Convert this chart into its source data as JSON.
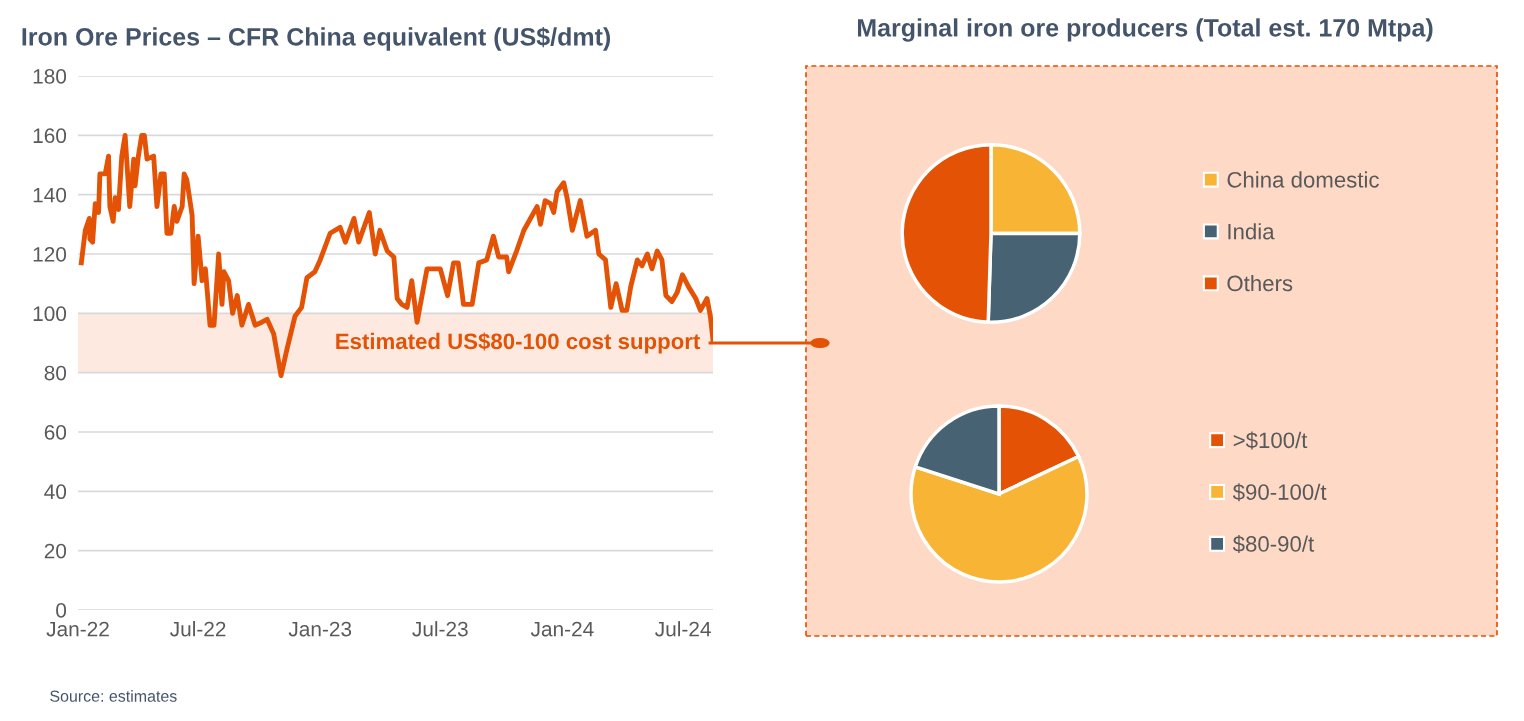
{
  "chart_data": [
    {
      "type": "line",
      "title": "Iron Ore Prices – CFR China equivalent (US$/dmt)",
      "x": [
        "2022-01-06",
        "2022-01-12",
        "2022-01-18",
        "2022-01-19",
        "2022-01-23",
        "2022-01-27",
        "2022-02-01",
        "2022-02-03",
        "2022-02-11",
        "2022-02-16",
        "2022-02-18",
        "2022-02-23",
        "2022-02-26",
        "2022-03-03",
        "2022-03-08",
        "2022-03-13",
        "2022-03-20",
        "2022-03-26",
        "2022-03-28",
        "2022-04-02",
        "2022-04-07",
        "2022-04-11",
        "2022-04-15",
        "2022-04-25",
        "2022-04-30",
        "2022-05-06",
        "2022-05-11",
        "2022-05-15",
        "2022-05-21",
        "2022-05-26",
        "2022-05-30",
        "2022-06-07",
        "2022-06-10",
        "2022-06-14",
        "2022-06-22",
        "2022-06-25",
        "2022-07-01",
        "2022-07-07",
        "2022-07-12",
        "2022-07-19",
        "2022-07-25",
        "2022-08-01",
        "2022-08-06",
        "2022-08-09",
        "2022-08-16",
        "2022-08-22",
        "2022-08-29",
        "2022-09-05",
        "2022-09-15",
        "2022-09-25",
        "2022-10-05",
        "2022-10-13",
        "2022-10-23",
        "2022-11-03",
        "2022-11-12",
        "2022-11-24",
        "2022-12-04",
        "2022-12-12",
        "2022-12-24",
        "2023-01-01",
        "2023-01-16",
        "2023-01-31",
        "2023-02-08",
        "2023-02-21",
        "2023-02-28",
        "2023-03-16",
        "2023-03-25",
        "2023-04-01",
        "2023-04-12",
        "2023-04-22",
        "2023-04-27",
        "2023-05-04",
        "2023-05-12",
        "2023-05-19",
        "2023-05-27",
        "2023-06-11",
        "2023-07-01",
        "2023-07-12",
        "2023-07-21",
        "2023-07-28",
        "2023-08-05",
        "2023-08-18",
        "2023-08-28",
        "2023-09-09",
        "2023-09-19",
        "2023-09-27",
        "2023-10-09",
        "2023-10-12",
        "2023-10-24",
        "2023-11-04",
        "2023-11-24",
        "2023-11-29",
        "2023-12-06",
        "2023-12-14",
        "2023-12-19",
        "2023-12-24",
        "2024-01-03",
        "2024-01-08",
        "2024-01-16",
        "2024-01-28",
        "2024-02-07",
        "2024-02-20",
        "2024-02-25",
        "2024-03-06",
        "2024-03-14",
        "2024-03-22",
        "2024-03-31",
        "2024-04-07",
        "2024-04-13",
        "2024-04-23",
        "2024-04-30",
        "2024-05-08",
        "2024-05-15",
        "2024-05-23",
        "2024-05-30",
        "2024-06-05",
        "2024-06-14",
        "2024-06-22",
        "2024-06-30",
        "2024-07-09",
        "2024-07-20",
        "2024-07-27",
        "2024-08-06",
        "2024-08-11",
        "2024-08-15"
      ],
      "series": [
        {
          "color": "#e35205",
          "values": [
            117,
            128,
            132,
            125,
            124,
            137,
            134,
            147,
            147,
            153,
            136,
            131,
            139,
            135,
            153,
            160,
            136,
            152,
            143,
            153,
            160,
            160,
            152,
            153,
            136,
            147,
            147,
            127,
            127,
            136,
            131,
            136,
            147,
            145,
            133,
            110,
            126,
            111,
            115,
            96,
            96,
            120,
            103,
            114,
            111,
            100,
            106,
            96,
            103,
            96,
            97,
            98,
            93,
            79,
            88,
            99,
            102,
            112,
            114,
            118,
            127,
            129,
            124,
            132,
            124,
            134,
            120,
            128,
            121,
            119,
            105,
            103,
            102,
            111,
            97,
            115,
            115,
            106,
            117,
            117,
            103,
            103,
            117,
            118,
            126,
            119,
            119,
            114,
            121,
            128,
            136,
            130,
            138,
            137,
            134,
            141,
            144,
            139,
            128,
            138,
            126,
            128,
            120,
            118,
            102,
            110,
            101,
            101,
            109,
            118,
            116,
            120,
            115,
            121,
            118,
            106,
            104,
            107,
            113,
            109,
            105,
            101,
            105,
            99,
            91
          ]
        }
      ],
      "xlim": [
        "2022-01-01",
        "2024-08-15"
      ],
      "xticks": [
        {
          "value": "2022-01-01",
          "label": "Jan-22"
        },
        {
          "value": "2022-07-01",
          "label": "Jul-22"
        },
        {
          "value": "2023-01-01",
          "label": "Jan-23"
        },
        {
          "value": "2023-07-01",
          "label": "Jul-23"
        },
        {
          "value": "2024-01-01",
          "label": "Jan-24"
        },
        {
          "value": "2024-07-01",
          "label": "Jul-24"
        }
      ],
      "ylim": [
        0,
        180
      ],
      "yticks": [
        0,
        20,
        40,
        60,
        80,
        100,
        120,
        140,
        160,
        180
      ],
      "grid": "y",
      "bands": [
        {
          "axis": "y",
          "from": 80,
          "to": 100,
          "label": "Estimated US$80-100 cost support",
          "color": "#fde9df"
        }
      ],
      "annotations": [
        "Source: estimates"
      ]
    },
    {
      "type": "pie",
      "title": "Marginal iron ore producers (Total est. 170 Mtpa)",
      "categories": [
        "China domestic",
        "India",
        "Others"
      ],
      "values": [
        25,
        25.5,
        49.5
      ],
      "colors": [
        "#f8b435",
        "#466273",
        "#e35205"
      ],
      "legend": "right"
    },
    {
      "type": "pie",
      "categories": [
        ">$100/t",
        "$90-100/t",
        "$80-90/t"
      ],
      "values": [
        18,
        62,
        20
      ],
      "colors": [
        "#e35205",
        "#f8b435",
        "#466273"
      ],
      "legend": "right"
    }
  ]
}
